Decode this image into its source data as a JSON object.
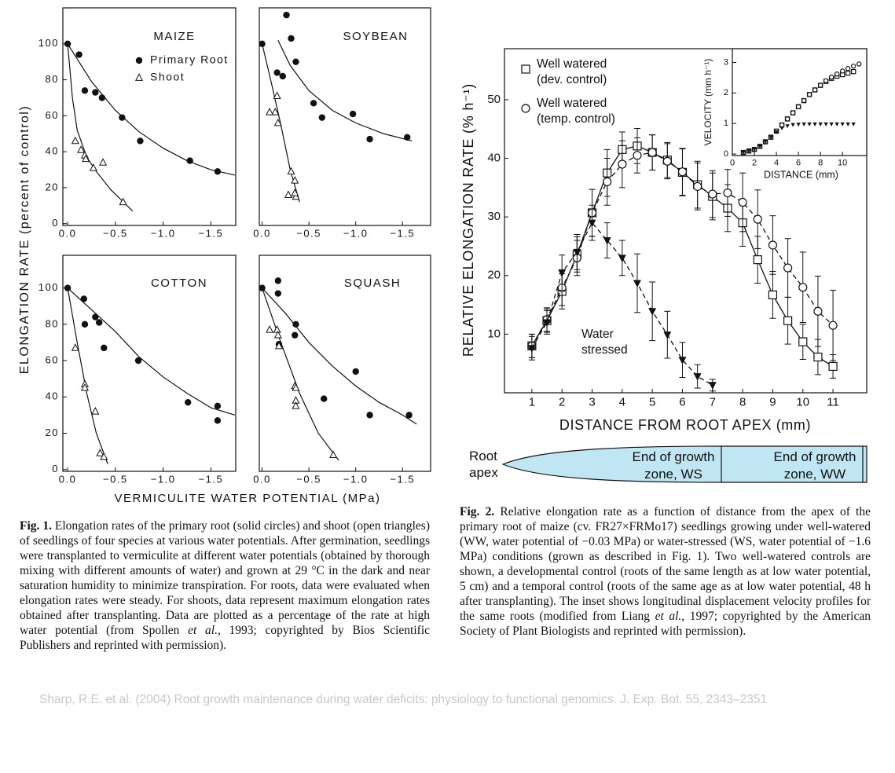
{
  "chart_data": [
    {
      "type": "scatter",
      "title": "MAIZE",
      "xlim": [
        0.05,
        -1.76
      ],
      "ylim": [
        -1,
        120
      ],
      "xticks": [
        {
          "value": 0,
          "label": "0.0"
        },
        {
          "value": -0.5,
          "label": "−0.5"
        },
        {
          "value": -1,
          "label": "−1.0"
        },
        {
          "value": -1.5,
          "label": "−1.5"
        }
      ],
      "yticks": [
        0,
        20,
        40,
        60,
        80,
        100
      ],
      "series": [
        {
          "name": "Primary Root",
          "marker": "circle",
          "color": "#111",
          "x": [
            0,
            -0.12,
            -0.18,
            -0.29,
            -0.36,
            -0.57,
            -0.76,
            -1.28,
            -1.57
          ],
          "values": [
            100,
            94,
            74,
            73,
            70,
            59,
            46,
            35,
            29
          ]
        },
        {
          "name": "Shoot",
          "marker": "triangle-open",
          "color": "#111",
          "x": [
            -0.08,
            -0.14,
            -0.18,
            -0.19,
            -0.27,
            -0.37,
            -0.58
          ],
          "values": [
            46,
            41,
            38,
            36,
            31,
            34,
            12
          ]
        }
      ],
      "fits": [
        {
          "x": [
            0,
            -0.25,
            -0.5,
            -0.75,
            -1,
            -1.25,
            -1.5,
            -1.75
          ],
          "values": [
            100,
            79,
            63,
            51,
            42,
            35,
            30,
            27
          ]
        },
        {
          "x": [
            0,
            -0.05,
            -0.1,
            -0.2,
            -0.3,
            -0.45,
            -0.68
          ],
          "values": [
            100,
            70,
            52,
            37,
            29,
            19,
            7
          ]
        }
      ]
    },
    {
      "type": "scatter",
      "title": "SOYBEAN",
      "xlim": [
        0.03,
        -1.8
      ],
      "ylim": [
        -1,
        120
      ],
      "xticks": [
        {
          "value": 0,
          "label": "0.0"
        },
        {
          "value": -0.5,
          "label": "−0.5"
        },
        {
          "value": -1,
          "label": "−1.0"
        },
        {
          "value": -1.5,
          "label": "−1.5"
        }
      ],
      "series": [
        {
          "marker": "circle",
          "color": "#111",
          "x": [
            0,
            -0.26,
            -0.31,
            -0.16,
            -0.22,
            -0.36,
            -0.55,
            -0.64,
            -0.97,
            -1.15,
            -1.55
          ],
          "values": [
            100,
            116,
            103,
            84,
            82,
            90,
            67,
            59,
            61,
            47,
            48
          ]
        },
        {
          "marker": "triangle-open",
          "color": "#111",
          "x": [
            -0.08,
            -0.16,
            -0.14,
            -0.17,
            -0.31,
            -0.35,
            -0.28,
            -0.36,
            -0.35
          ],
          "values": [
            62,
            71,
            62,
            56,
            29,
            24,
            16,
            15,
            17
          ]
        }
      ],
      "fits": [
        {
          "x": [
            -0.17,
            -0.3,
            -0.5,
            -0.75,
            -1,
            -1.3,
            -1.6
          ],
          "values": [
            102,
            88,
            74,
            63,
            56,
            50,
            46
          ]
        },
        {
          "x": [
            0,
            -0.1,
            -0.2,
            -0.3,
            -0.4
          ],
          "values": [
            100,
            78,
            55,
            30,
            12
          ]
        }
      ]
    },
    {
      "type": "scatter",
      "title": "COTTON",
      "xlim": [
        0.05,
        -1.76
      ],
      "ylim": [
        -1,
        118
      ],
      "xticks": [
        {
          "value": 0,
          "label": "0.0"
        },
        {
          "value": -0.5,
          "label": "−0.5"
        },
        {
          "value": -1,
          "label": "−1.0"
        },
        {
          "value": -1.5,
          "label": "−1.5"
        }
      ],
      "yticks": [
        0,
        20,
        40,
        60,
        80,
        100
      ],
      "series": [
        {
          "marker": "circle",
          "color": "#111",
          "x": [
            0,
            -0.17,
            -0.18,
            -0.29,
            -0.33,
            -0.38,
            -0.74,
            -1.26,
            -1.57,
            -1.57
          ],
          "values": [
            100,
            94,
            80,
            84,
            81,
            67,
            60,
            37,
            35,
            27
          ]
        },
        {
          "marker": "triangle-open",
          "color": "#111",
          "x": [
            -0.08,
            -0.18,
            -0.18,
            -0.29,
            -0.34,
            -0.38
          ],
          "values": [
            67,
            47,
            45,
            32,
            9,
            7
          ]
        }
      ],
      "fits": [
        {
          "x": [
            0,
            -0.25,
            -0.5,
            -0.75,
            -1,
            -1.25,
            -1.5,
            -1.75
          ],
          "values": [
            100,
            88,
            76,
            62,
            51,
            42,
            34,
            30
          ]
        },
        {
          "x": [
            0,
            -0.1,
            -0.2,
            -0.3,
            -0.42
          ],
          "values": [
            100,
            70,
            42,
            20,
            3
          ]
        }
      ]
    },
    {
      "type": "scatter",
      "title": "SQUASH",
      "xlim": [
        0.03,
        -1.8
      ],
      "ylim": [
        -1,
        118
      ],
      "xticks": [
        {
          "value": 0,
          "label": "0.0"
        },
        {
          "value": -0.5,
          "label": "−0.5"
        },
        {
          "value": -1,
          "label": "−1.0"
        },
        {
          "value": -1.5,
          "label": "−1.5"
        }
      ],
      "series": [
        {
          "marker": "circle",
          "color": "#111",
          "x": [
            0,
            -0.17,
            -0.17,
            -0.18,
            -0.36,
            -0.35,
            -0.66,
            -1,
            -1.15,
            -1.57
          ],
          "values": [
            100,
            97,
            104,
            69,
            80,
            74,
            39,
            54,
            30,
            30
          ]
        },
        {
          "marker": "triangle-open",
          "color": "#111",
          "x": [
            -0.08,
            -0.16,
            -0.17,
            -0.18,
            -0.35,
            -0.36,
            -0.36,
            -0.36,
            -0.76
          ],
          "values": [
            77,
            77,
            74,
            68,
            46,
            45,
            38,
            35,
            8
          ]
        }
      ],
      "fits": [
        {
          "x": [
            0,
            -0.25,
            -0.5,
            -0.75,
            -1,
            -1.25,
            -1.5,
            -1.65
          ],
          "values": [
            100,
            86,
            70,
            57,
            46,
            37,
            30,
            25
          ]
        },
        {
          "x": [
            0,
            -0.2,
            -0.4,
            -0.6,
            -0.82
          ],
          "values": [
            100,
            70,
            42,
            20,
            5
          ]
        }
      ]
    },
    {
      "type": "line",
      "x_label": "DISTANCE FROM ROOT APEX (mm)",
      "y_label": "RELATIVE ELONGATION RATE (% h⁻¹)",
      "xlim": [
        0.09,
        12.12
      ],
      "ylim": [
        0,
        58.7
      ],
      "xticks": [
        1,
        2,
        3,
        4,
        5,
        6,
        7,
        8,
        9,
        10,
        11
      ],
      "yticks": [
        10,
        20,
        30,
        40,
        50
      ],
      "annotation": "Water stressed",
      "series": [
        {
          "name": "Well watered (dev. control)",
          "marker": "square-open",
          "color": "#111",
          "dash": false,
          "x": [
            1,
            1.5,
            2,
            2.5,
            3,
            3.5,
            4,
            4.5,
            5,
            5.5,
            6,
            6.5,
            7,
            7.5,
            8,
            8.5,
            9,
            9.5,
            10,
            10.5,
            11
          ],
          "values": [
            8,
            12.3,
            17.3,
            23.6,
            30.7,
            37.5,
            41.5,
            42.1,
            41,
            39.7,
            37.6,
            35.5,
            33.5,
            31.5,
            29,
            22.7,
            16.7,
            12.3,
            8.7,
            6.1,
            4.5
          ],
          "errors": [
            2,
            2,
            3,
            3,
            4,
            4,
            3,
            3,
            3,
            3,
            4,
            4,
            4,
            4,
            4,
            4,
            4,
            4,
            3,
            3,
            2
          ]
        },
        {
          "name": "Well watered (temp. control)",
          "marker": "circle-open",
          "color": "#111",
          "dash": true,
          "x": [
            1,
            1.5,
            2,
            2.5,
            3,
            3.5,
            4,
            4.5,
            5,
            5.5,
            6,
            6.5,
            7,
            7.5,
            8,
            8.5,
            9,
            9.5,
            10,
            10.5,
            11
          ],
          "values": [
            8,
            12.5,
            17.9,
            23,
            30.7,
            36,
            39,
            40.5,
            41,
            39.5,
            37.7,
            35.2,
            33.9,
            34.1,
            32.5,
            29.6,
            25.2,
            21.3,
            18,
            13.9,
            11.5
          ],
          "errors": [
            2,
            2,
            3,
            3,
            4,
            4,
            4,
            3,
            3,
            3,
            4,
            4,
            4,
            4,
            5,
            5,
            5,
            5,
            6,
            6,
            6
          ]
        },
        {
          "marker": "triangle-down",
          "color": "#111",
          "dash": true,
          "x": [
            1,
            1.5,
            2,
            2.5,
            3,
            3.5,
            4,
            4.5,
            5,
            5.5,
            6,
            6.5,
            7
          ],
          "values": [
            7.6,
            12,
            20.5,
            24,
            29,
            26,
            23,
            18.7,
            13.9,
            9.9,
            5.6,
            2.8,
            1.3
          ],
          "errors": [
            2,
            2,
            3,
            3,
            3,
            3,
            3,
            5,
            5,
            4,
            3,
            2,
            1
          ]
        }
      ]
    },
    {
      "type": "scatter",
      "x_label": "DISTANCE (mm)",
      "y_label": "VELOCITY (mm h⁻¹)",
      "xlim": [
        0,
        12.2
      ],
      "ylim": [
        -0.05,
        3.45
      ],
      "xticks": [
        0,
        2,
        4,
        6,
        8,
        10
      ],
      "yticks": [
        0,
        1,
        2,
        3
      ],
      "series": [
        {
          "marker": "square-open",
          "color": "#111",
          "x": [
            1,
            1.5,
            2,
            2.5,
            3,
            3.5,
            4,
            4.5,
            5,
            5.5,
            6,
            6.5,
            7,
            7.5,
            8,
            8.5,
            9,
            9.5,
            10,
            10.5,
            11
          ],
          "values": [
            0.05,
            0.1,
            0.15,
            0.25,
            0.4,
            0.55,
            0.75,
            0.95,
            1.15,
            1.35,
            1.55,
            1.75,
            1.95,
            2.1,
            2.25,
            2.38,
            2.48,
            2.55,
            2.6,
            2.65,
            2.7
          ]
        },
        {
          "marker": "circle-open",
          "color": "#111",
          "x": [
            1,
            1.5,
            2,
            2.5,
            3,
            3.5,
            4,
            4.5,
            5,
            5.5,
            6,
            6.5,
            7,
            7.5,
            8,
            8.5,
            9,
            9.5,
            10,
            10.5,
            11,
            11.5
          ],
          "values": [
            0.05,
            0.1,
            0.15,
            0.25,
            0.4,
            0.55,
            0.75,
            0.95,
            1.15,
            1.35,
            1.55,
            1.75,
            1.95,
            2.1,
            2.25,
            2.4,
            2.52,
            2.62,
            2.72,
            2.8,
            2.88,
            2.95
          ]
        },
        {
          "marker": "triangle-down",
          "color": "#111",
          "x": [
            1,
            1.5,
            2,
            2.5,
            3,
            3.5,
            4,
            4.5,
            5,
            5.5,
            6,
            6.5,
            7,
            7.5,
            8,
            8.5,
            9,
            9.5,
            10,
            10.5,
            11
          ],
          "values": [
            0.05,
            0.1,
            0.15,
            0.25,
            0.4,
            0.55,
            0.72,
            0.85,
            0.92,
            0.96,
            0.97,
            0.98,
            0.98,
            0.98,
            0.98,
            0.98,
            0.98,
            0.98,
            0.98,
            0.98,
            0.98
          ]
        }
      ]
    }
  ],
  "figure_1": {
    "y_label": "ELONGATION RATE (percent of control)",
    "x_label": "VERMICULITE WATER POTENTIAL (MPa)",
    "caption": {
      "label": "Fig. 1.",
      "parts": [
        " Elongation rates of the primary root (solid circles) and shoot (open triangles) of seedlings of four species at various water potentials. After germination, seedlings were transplanted to vermiculite at different water potentials (obtained by thorough mixing with different amounts of water) and grown at 29 °C in the dark and near saturation humidity to minimize transpiration. For roots, data were evaluated when elongation rates were steady. For shoots, data represent maximum elongation rates obtained after transplanting. Data are plotted as a percentage of the rate at high water potential (from Spollen ",
        "et al.",
        ", 1993; copyrighted by Bios Scientific Publishers and reprinted with permission)."
      ]
    }
  },
  "figure_2": {
    "diagram": {
      "apex": "Root apex",
      "ws_end": "End of growth zone, WS",
      "ww_end": "End of growth zone, WW"
    },
    "caption": {
      "label": "Fig. 2.",
      "parts": [
        " Relative elongation rate as a function of distance from the apex of the primary root of maize (cv. FR27×FRMo17) seedlings growing under well-watered (WW, water potential of −0.03 MPa) or water-stressed (WS, water potential of −1.6 MPa) conditions (grown as described in Fig. 1). Two well-watered controls are shown, a developmental control (roots of the same length as at low water potential, 5 cm) and a temporal control (roots of the same age as at low water potential, 48 h after transplanting). The inset shows longitudinal displacement velocity profiles for the same roots (modified from Liang ",
        "et al.",
        ", 1997; copyrighted by the American Society of Plant Biologists and reprinted with permission)."
      ]
    }
  },
  "footer": "Sharp, R.E. et al. (2004) Root growth maintenance during water deficits: physiology to functional genomics. J. Exp. Bot. 55, 2343–2351"
}
